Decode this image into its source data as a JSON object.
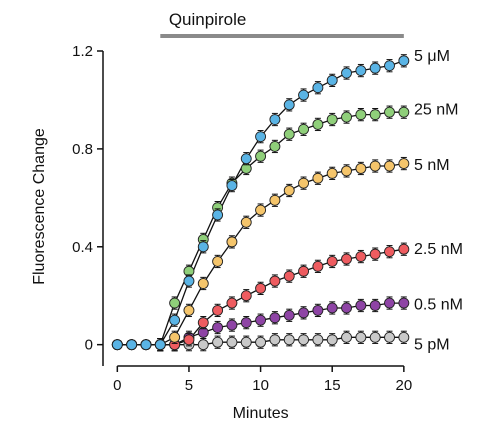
{
  "chart_data": {
    "type": "scatter",
    "xlabel": "Minutes",
    "ylabel": "Fluorescence Change",
    "xlim": [
      -1,
      20.5
    ],
    "ylim": [
      -0.03,
      1.2
    ],
    "x_ticks": [
      0,
      5,
      10,
      15,
      20
    ],
    "x_tick_labels": [
      "0",
      "5",
      "10",
      "15",
      "20"
    ],
    "y_ticks": [
      0,
      0.4,
      0.8,
      1.2
    ],
    "y_tick_labels": [
      "0",
      "0.4",
      "0.8",
      "1.2"
    ],
    "grid": false,
    "legend": "series labels at right end of each curve",
    "treatment_bar": {
      "label": "Quinpirole",
      "start": 3,
      "end": 20,
      "color": "#8a8a8a"
    },
    "x": [
      0,
      1,
      2,
      3,
      4,
      5,
      6,
      7,
      8,
      9,
      10,
      11,
      12,
      13,
      14,
      15,
      16,
      17,
      18,
      19,
      20
    ],
    "series": [
      {
        "name": "5 μM",
        "color": "#5ab4e5",
        "values": [
          0,
          0,
          0,
          0,
          0.1,
          0.26,
          0.4,
          0.53,
          0.65,
          0.76,
          0.85,
          0.92,
          0.98,
          1.02,
          1.05,
          1.08,
          1.11,
          1.12,
          1.13,
          1.14,
          1.16
        ]
      },
      {
        "name": "25 nM",
        "color": "#8fcf7a",
        "values": [
          0,
          0,
          0,
          0,
          0.17,
          0.3,
          0.43,
          0.56,
          0.66,
          0.72,
          0.77,
          0.81,
          0.86,
          0.88,
          0.9,
          0.92,
          0.93,
          0.94,
          0.94,
          0.95,
          0.95
        ]
      },
      {
        "name": "5 nM",
        "color": "#f5c56b",
        "values": [
          0,
          0,
          0,
          0,
          0.03,
          0.14,
          0.25,
          0.34,
          0.42,
          0.5,
          0.55,
          0.59,
          0.63,
          0.66,
          0.68,
          0.7,
          0.71,
          0.72,
          0.73,
          0.73,
          0.74
        ]
      },
      {
        "name": "2.5 nM",
        "color": "#ee5c60",
        "values": [
          0,
          0,
          0,
          0,
          0,
          0.02,
          0.09,
          0.14,
          0.17,
          0.2,
          0.23,
          0.26,
          0.28,
          0.3,
          0.32,
          0.34,
          0.35,
          0.36,
          0.37,
          0.38,
          0.39
        ]
      },
      {
        "name": "0.5 nM",
        "color": "#8e44a5",
        "values": [
          0,
          0,
          0,
          0,
          0,
          0.03,
          0.05,
          0.07,
          0.08,
          0.09,
          0.1,
          0.11,
          0.12,
          0.13,
          0.14,
          0.15,
          0.15,
          0.16,
          0.16,
          0.17,
          0.17
        ]
      },
      {
        "name": "5 pM",
        "color": "#c9c9c9",
        "values": [
          0,
          0,
          0,
          0,
          0,
          0,
          0,
          0.01,
          0.01,
          0.01,
          0.01,
          0.02,
          0.02,
          0.02,
          0.02,
          0.02,
          0.03,
          0.03,
          0.03,
          0.03,
          0.03
        ]
      }
    ],
    "error_bar": 0.025
  }
}
